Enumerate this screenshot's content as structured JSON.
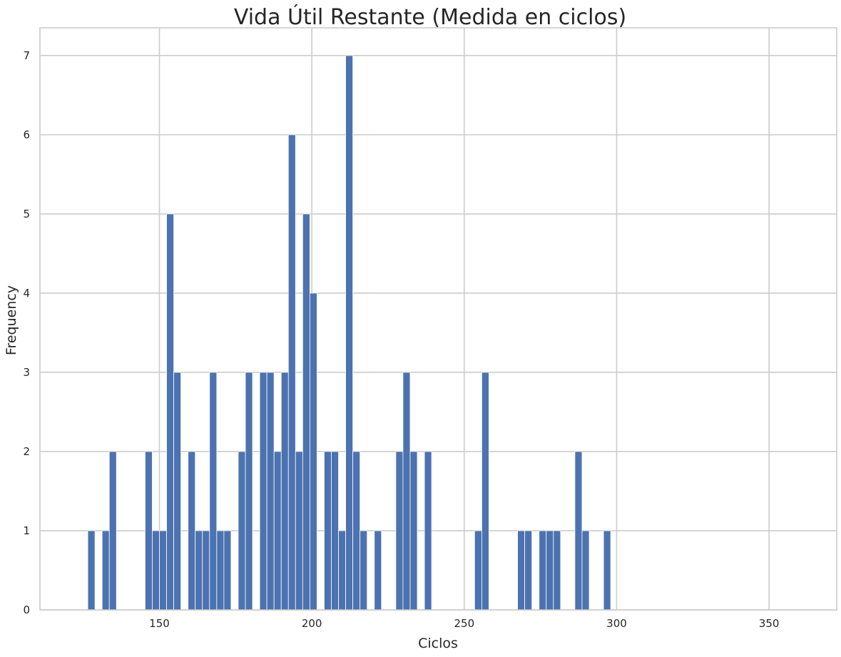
{
  "chart_data": {
    "type": "bar",
    "title": "Vida Útil Restante (Medida en ciclos)",
    "xlabel": "Ciclos",
    "ylabel": "Frequency",
    "xlim": [
      110.8,
      372.2
    ],
    "ylim": [
      0,
      7.35
    ],
    "xticks": [
      150,
      200,
      250,
      300,
      350
    ],
    "yticks": [
      0,
      1,
      2,
      3,
      4,
      5,
      6,
      7
    ],
    "grid": true,
    "bin_start": 126.5,
    "bin_width": 2.35,
    "bin_counts": [
      1,
      0,
      1,
      2,
      0,
      0,
      0,
      0,
      2,
      1,
      1,
      5,
      3,
      0,
      2,
      1,
      1,
      3,
      1,
      1,
      0,
      2,
      3,
      0,
      3,
      3,
      2,
      3,
      6,
      2,
      5,
      4,
      0,
      2,
      2,
      1,
      7,
      2,
      1,
      0,
      1,
      0,
      0,
      2,
      3,
      2,
      0,
      2,
      0,
      0,
      0,
      0,
      0,
      0,
      1,
      3,
      0,
      0,
      0,
      0,
      1,
      1,
      0,
      1,
      1,
      1,
      0,
      0,
      2,
      1,
      0,
      0,
      1,
      0,
      0,
      0,
      0,
      0,
      0,
      0,
      0,
      0,
      0,
      0,
      0,
      0,
      0,
      0,
      0,
      0,
      0,
      0,
      0,
      0,
      0,
      0,
      0,
      0,
      0,
      0
    ],
    "colors": {
      "bar": "#4c72b0",
      "bar_edge": "#ffffff",
      "grid": "#cccccc",
      "spine": "#cccccc"
    }
  }
}
